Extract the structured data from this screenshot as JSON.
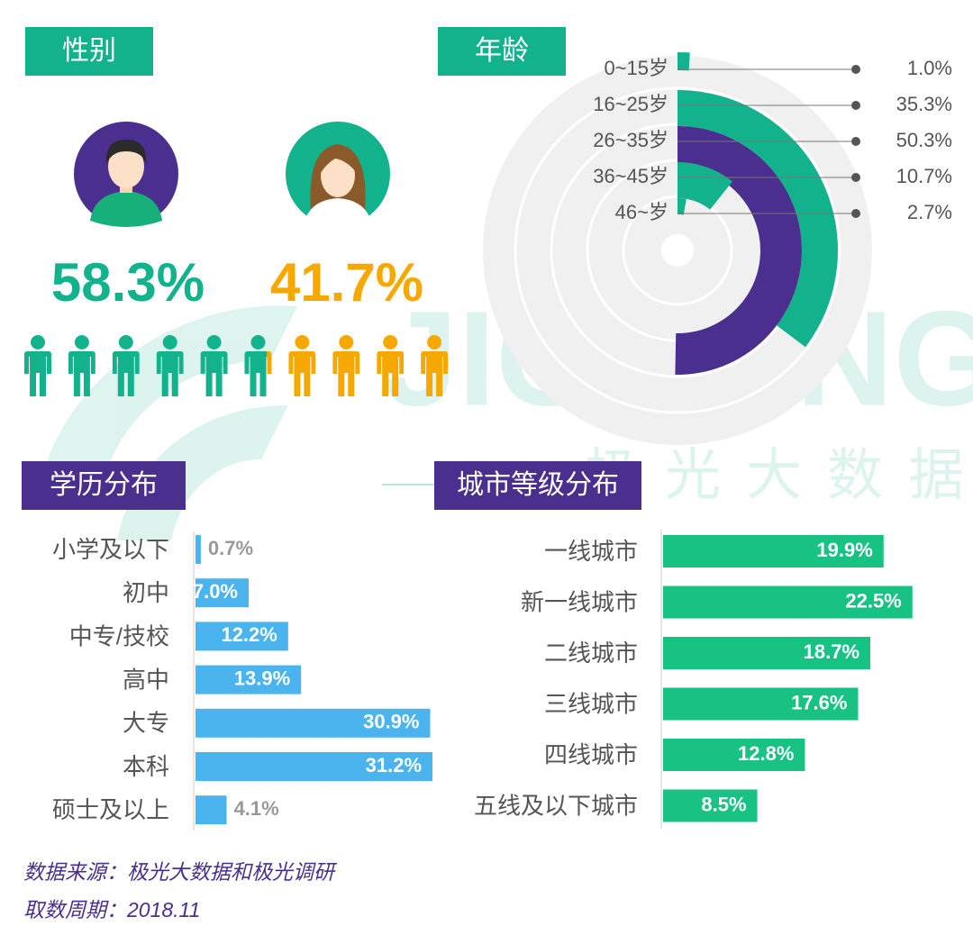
{
  "watermark": {
    "brand": "JIGUANG",
    "name": "极光大数据"
  },
  "chart_data": [
    {
      "type": "pictograph",
      "title": "性别",
      "values": [
        58.3,
        41.7
      ],
      "value_labels": [
        "58.3%",
        "41.7%"
      ],
      "colors": [
        "#12b28c",
        "#f5a900"
      ]
    },
    {
      "type": "radial_bar",
      "title": "年龄",
      "categories": [
        "0~15岁",
        "16~25岁",
        "26~35岁",
        "36~45岁",
        "46~岁"
      ],
      "values": [
        1.0,
        35.3,
        50.3,
        10.7,
        2.7
      ],
      "value_labels": [
        "1.0%",
        "35.3%",
        "50.3%",
        "10.7%",
        "2.7%"
      ],
      "colors": [
        "#12b28c",
        "#12b28c",
        "#4a2f8e",
        "#12b28c",
        "#12b28c"
      ]
    },
    {
      "type": "hbar",
      "title": "学历分布",
      "categories": [
        "小学及以下",
        "初中",
        "中专/技校",
        "高中",
        "大专",
        "本科",
        "硕士及以上"
      ],
      "values": [
        0.7,
        7.0,
        12.2,
        13.9,
        30.9,
        31.2,
        4.1
      ],
      "value_labels": [
        "0.7%",
        "7.0%",
        "12.2%",
        "13.9%",
        "30.9%",
        "31.2%",
        "4.1%"
      ],
      "color": "#4bb4ef"
    },
    {
      "type": "hbar",
      "title": "城市等级分布",
      "categories": [
        "一线城市",
        "新一线城市",
        "二线城市",
        "三线城市",
        "四线城市",
        "五线及以下城市"
      ],
      "values": [
        19.9,
        22.5,
        18.7,
        17.6,
        12.8,
        8.5
      ],
      "value_labels": [
        "19.9%",
        "22.5%",
        "18.7%",
        "17.6%",
        "12.8%",
        "8.5%"
      ],
      "color": "#17c283"
    }
  ],
  "footer": {
    "source": "数据来源：极光大数据和极光调研",
    "period": "取数周期：2018.11"
  }
}
